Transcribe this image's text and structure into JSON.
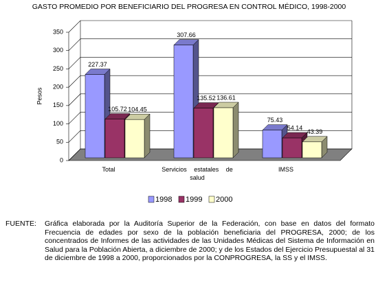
{
  "chart_data": {
    "type": "bar3d",
    "title": "GASTO PROMEDIO POR BENEFICIARIO DEL PROGRESA EN CONTROL MÉDICO, 1998-2000",
    "ylabel": "Pesos",
    "categories": [
      "Total",
      "Servicios estatales de salud",
      "IMSS"
    ],
    "series": [
      {
        "name": "1998",
        "color": "#9999ff",
        "values": [
          227.37,
          307.66,
          75.43
        ]
      },
      {
        "name": "1999",
        "color": "#993366",
        "values": [
          105.72,
          135.52,
          54.14
        ]
      },
      {
        "name": "2000",
        "color": "#ffffcc",
        "values": [
          104.45,
          136.61,
          43.39
        ]
      }
    ],
    "ylim": [
      0,
      350
    ],
    "yticks": [
      0,
      50,
      100,
      150,
      200,
      250,
      300,
      350
    ],
    "grid": true
  },
  "footer": {
    "label": "FUENTE:",
    "text": "Gráfica elaborada por la Auditoría Superior de la Federación, con base en datos del formato Frecuencia de edades por sexo de la población beneficiaria del PROGRESA, 2000; de los concentrados de Informes de las actividades de las Unidades Médicas del Sistema de Información en Salud para la Población Abierta, a diciembre de 2000; y de los Estados del Ejercicio Presupuestal al 31 de diciembre de 1998 a 2000, proporcionados por la CONPROGRESA, la SS y el IMSS."
  }
}
